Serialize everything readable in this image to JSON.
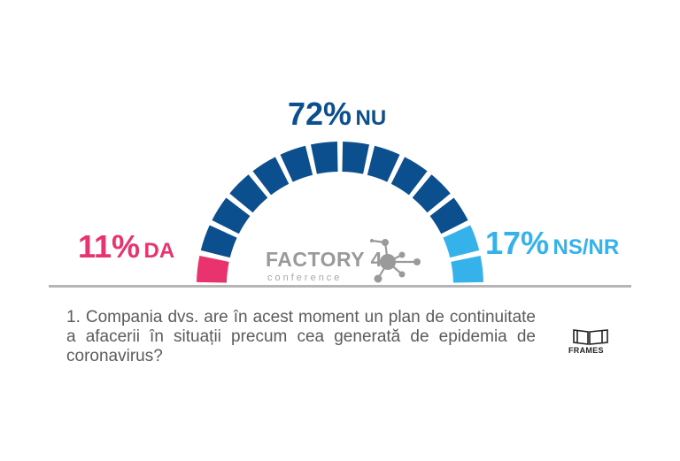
{
  "chart_data": {
    "type": "gauge",
    "segments": [
      {
        "value": 11,
        "value_label": "11%",
        "category": "DA",
        "color": "#e8336e"
      },
      {
        "value": 72,
        "value_label": "72%",
        "category": "NU",
        "color": "#0c4f8e"
      },
      {
        "value": 17,
        "value_label": "17%",
        "category": "NS/NR",
        "color": "#35b2ea"
      }
    ],
    "tile_count": 14,
    "tile_colors": [
      "#e8336e",
      "#0c4f8e",
      "#0c4f8e",
      "#0c4f8e",
      "#0c4f8e",
      "#0c4f8e",
      "#0c4f8e",
      "#0c4f8e",
      "#0c4f8e",
      "#0c4f8e",
      "#0c4f8e",
      "#0c4f8e",
      "#35b2ea",
      "#35b2ea"
    ]
  },
  "question": "1. Compania dvs. are în acest moment un plan de continuitate a afacerii în situații precum cea generată de epidemia de coronavirus?",
  "logos": {
    "factory": {
      "word": "FACTORY 4",
      "sub": "conference"
    },
    "frames": {
      "word": "FRAMES"
    }
  }
}
